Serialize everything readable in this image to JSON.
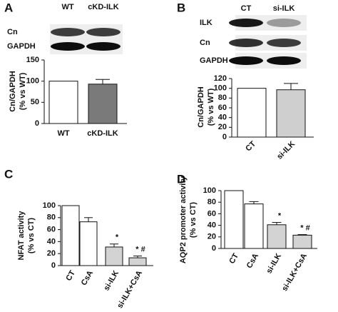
{
  "chart_data": [
    {
      "type": "bar",
      "panel": "A",
      "blot": {
        "lanes": [
          "WT",
          "cKD-ILK"
        ],
        "rows": [
          "Cn",
          "GAPDH"
        ]
      },
      "ylabel": [
        "Cn/GAPDH",
        "(% vs WT)"
      ],
      "categories": [
        "WT",
        "cKD-ILK"
      ],
      "values": [
        100,
        93
      ],
      "errors": [
        null,
        11
      ],
      "annotations": [
        null,
        null
      ],
      "colors": [
        "#ffffff",
        "#7a7a7a"
      ],
      "ylim": [
        0,
        150
      ],
      "yticks": [
        0,
        50,
        100,
        150
      ]
    },
    {
      "type": "bar",
      "panel": "B",
      "blot": {
        "lanes": [
          "CT",
          "si-ILK"
        ],
        "rows": [
          "ILK",
          "Cn",
          "GAPDH"
        ]
      },
      "ylabel": [
        "Cn/GAPDH",
        "(% vs WT)"
      ],
      "categories": [
        "CT",
        "si-ILK"
      ],
      "values": [
        100,
        97
      ],
      "errors": [
        null,
        13
      ],
      "annotations": [
        null,
        null
      ],
      "colors": [
        "#ffffff",
        "#cfcfcf"
      ],
      "ylim": [
        0,
        120
      ],
      "yticks": [
        0,
        20,
        40,
        60,
        80,
        100,
        120
      ]
    },
    {
      "type": "bar",
      "panel": "C",
      "ylabel": [
        "NFAT activity",
        "(% vs CT)"
      ],
      "categories": [
        "CT",
        "CsA",
        "si-ILK",
        "si-ILK+CsA"
      ],
      "values": [
        100,
        73,
        31,
        13
      ],
      "errors": [
        null,
        7,
        5,
        3
      ],
      "annotations": [
        null,
        null,
        "*",
        "* #"
      ],
      "colors": [
        "#ffffff",
        "#ffffff",
        "#d3d3d3",
        "#d3d3d3"
      ],
      "ylim": [
        0,
        100
      ],
      "yticks": [
        0,
        20,
        40,
        60,
        80,
        100
      ]
    },
    {
      "type": "bar",
      "panel": "D",
      "ylabel": [
        "AQP2 promoter activity",
        "(% vs CT)"
      ],
      "categories": [
        "CT",
        "CsA",
        "si-ILK",
        "si-ILK+CsA"
      ],
      "values": [
        100,
        77,
        41,
        23
      ],
      "errors": [
        null,
        4,
        4,
        1
      ],
      "annotations": [
        null,
        null,
        "*",
        "* #"
      ],
      "colors": [
        "#ffffff",
        "#ffffff",
        "#d3d3d3",
        "#d3d3d3"
      ],
      "ylim": [
        0,
        100
      ],
      "yticks": [
        0,
        20,
        40,
        60,
        80,
        100
      ]
    }
  ]
}
